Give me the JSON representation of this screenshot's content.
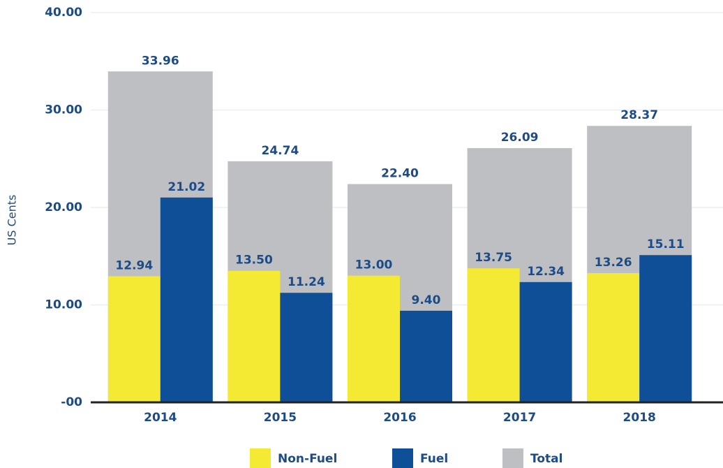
{
  "chart_data": {
    "type": "bar",
    "y_label": "US Cents",
    "categories": [
      "2014",
      "2015",
      "2016",
      "2017",
      "2018"
    ],
    "series": [
      {
        "name": "Non-Fuel",
        "color": "#f4ea33",
        "values": [
          12.94,
          13.5,
          13.0,
          13.75,
          13.26
        ],
        "value_labels": [
          "12.94",
          "13.50",
          "13.00",
          "13.75",
          "13.26"
        ]
      },
      {
        "name": "Fuel",
        "color": "#0e4f97",
        "values": [
          21.02,
          11.24,
          9.4,
          12.34,
          15.11
        ],
        "value_labels": [
          "21.02",
          "11.24",
          "9.40",
          "12.34",
          "15.11"
        ]
      },
      {
        "name": "Total",
        "color": "#bebfc3",
        "values": [
          33.96,
          24.74,
          22.4,
          26.09,
          28.37
        ],
        "value_labels": [
          "33.96",
          "24.74",
          "22.40",
          "26.09",
          "28.37"
        ]
      }
    ],
    "ylim": [
      0,
      40
    ],
    "yticks": [
      {
        "value": 0,
        "label": "-00"
      },
      {
        "value": 10,
        "label": "10.00"
      },
      {
        "value": 20,
        "label": "20.00"
      },
      {
        "value": 30,
        "label": "30.00"
      },
      {
        "value": 40,
        "label": "40.00"
      }
    ],
    "grid": true
  }
}
